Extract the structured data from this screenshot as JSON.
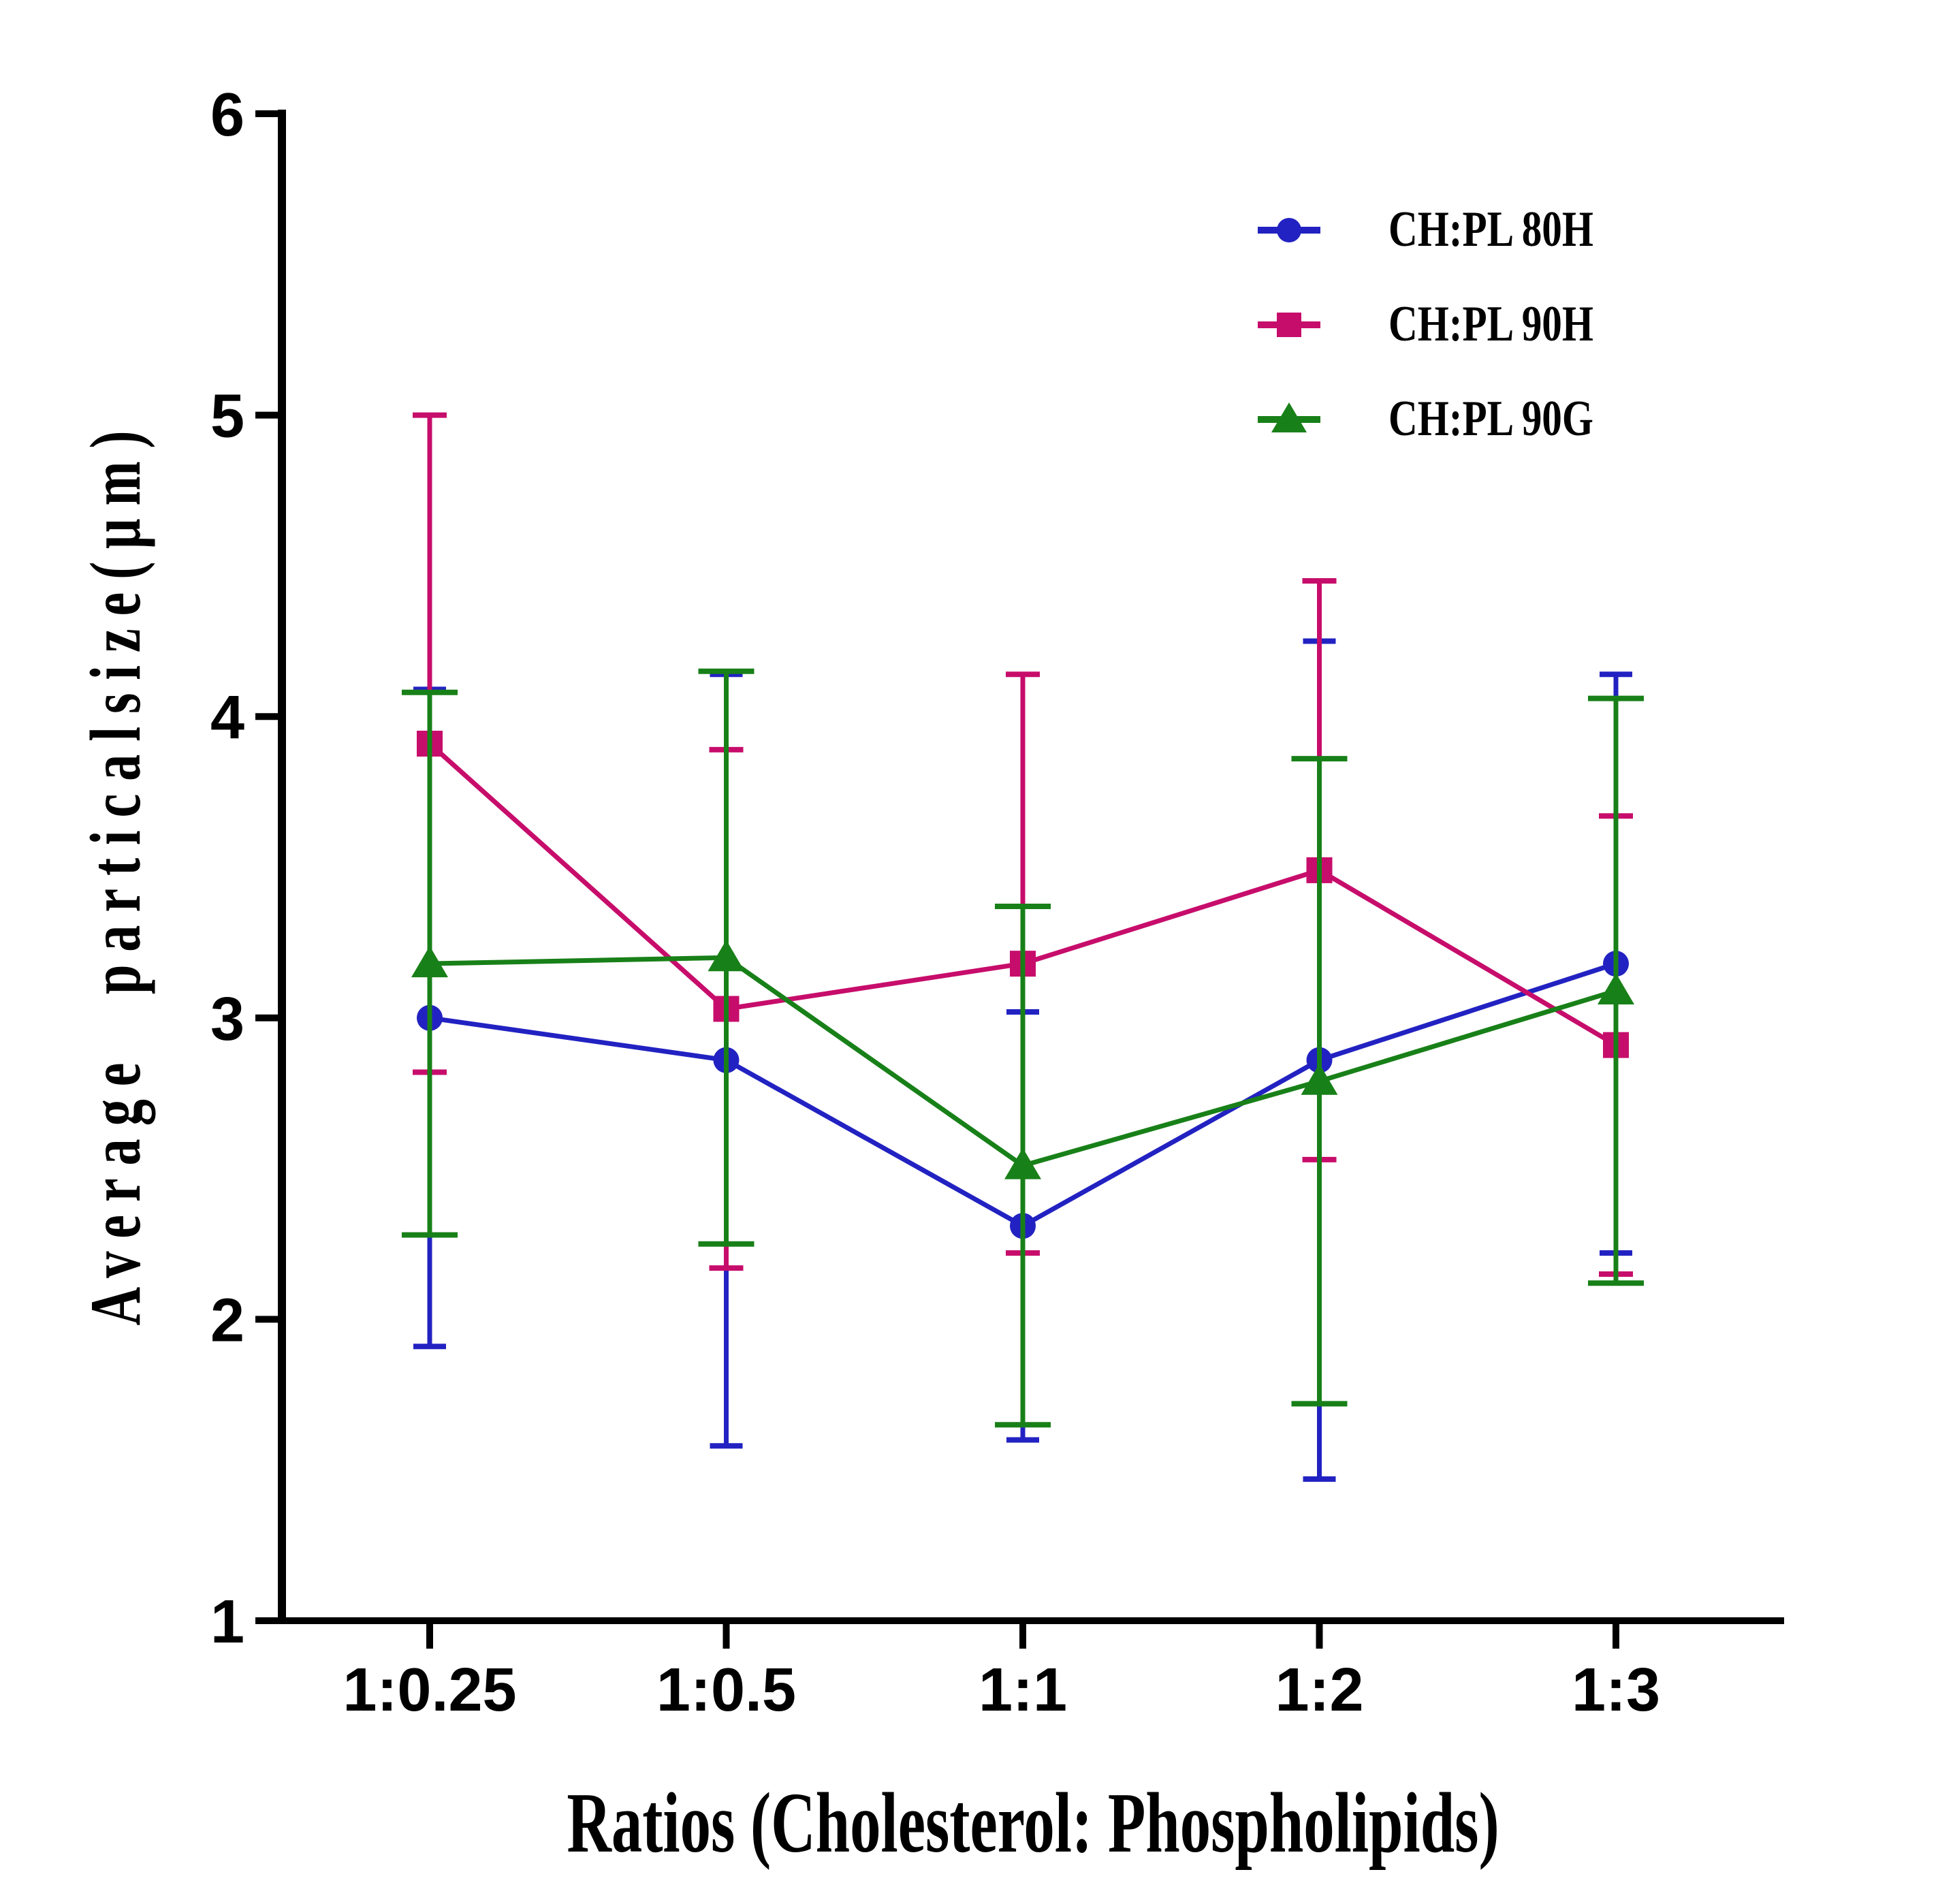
{
  "page": {
    "background": "#ffffff",
    "axis_color": "#000000"
  },
  "chart_data": {
    "type": "line",
    "title": "",
    "xlabel": "Ratios (Cholesterol: Phospholipids)",
    "ylabel": "Average particalsize(μm)",
    "categories": [
      "1:0.25",
      "1:0.5",
      "1:1",
      "1:2",
      "1:3"
    ],
    "ylim": [
      1,
      6
    ],
    "yticks": [
      1,
      2,
      3,
      4,
      5,
      6
    ],
    "grid": false,
    "legend_position": "top-right",
    "error_bars": "symmetric",
    "series": [
      {
        "name": "CH:PL 80H",
        "marker": "circle",
        "color": "#2222c2",
        "values": [
          3.0,
          2.86,
          2.31,
          2.86,
          3.18
        ],
        "errors": [
          1.09,
          1.28,
          0.71,
          1.39,
          0.96
        ]
      },
      {
        "name": "CH:PL 90H",
        "marker": "square",
        "color": "#c70d6b",
        "values": [
          3.91,
          3.03,
          3.18,
          3.49,
          2.91
        ],
        "errors": [
          1.09,
          0.86,
          0.96,
          0.96,
          0.76
        ]
      },
      {
        "name": "CH:PL 90G",
        "marker": "triangle",
        "color": "#188018",
        "values": [
          3.18,
          3.2,
          2.51,
          2.79,
          3.09
        ],
        "errors": [
          0.9,
          0.95,
          0.86,
          1.07,
          0.97
        ]
      }
    ]
  }
}
